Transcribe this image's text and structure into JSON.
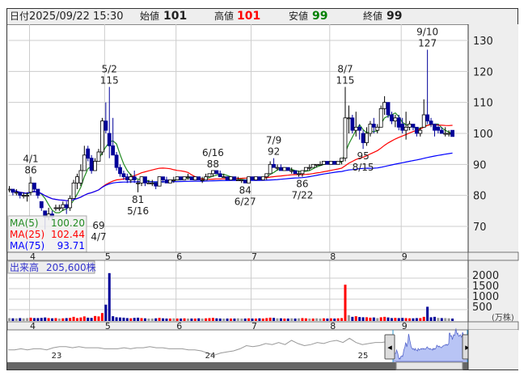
{
  "header": {
    "date_label": "日付",
    "date_value": "2025/09/22 15:30",
    "open_label": "始値",
    "open_value": "101",
    "high_label": "高値",
    "high_value": "101",
    "low_label": "安値",
    "low_value": "99",
    "close_label": "終値",
    "close_value": "99"
  },
  "colors": {
    "up_body": "#ffffff",
    "down_body": "#000099",
    "vol_up": "#ff0000",
    "vol_down": "#000099",
    "vol_flat": "#999999",
    "ma5": "#228b22",
    "ma25": "#ff0000",
    "ma75": "#0000ff",
    "high_text": "#ff0000",
    "low_text": "#008000"
  },
  "legend": [
    {
      "label": "MA(5)",
      "value": "100.20"
    },
    {
      "label": "MA(25)",
      "value": "102.44"
    },
    {
      "label": "MA(75)",
      "value": "93.71"
    }
  ],
  "volume_header": {
    "label": "出来高",
    "value": "205,600株"
  },
  "navigator": {
    "year_labels": [
      "23",
      "24",
      "25"
    ],
    "history": [
      81,
      81,
      82,
      81,
      82,
      82,
      81,
      83,
      84,
      84,
      83,
      84,
      83,
      83,
      83,
      82,
      82,
      82,
      83,
      82,
      83,
      83,
      84,
      83,
      83,
      82,
      82,
      82,
      81,
      81,
      80,
      78,
      76,
      78,
      79,
      80,
      82,
      85,
      84,
      85,
      87,
      86,
      88,
      86,
      90,
      87,
      85,
      86,
      88,
      87,
      89,
      90,
      88,
      92,
      88,
      86,
      87,
      88,
      88,
      89
    ]
  },
  "chart_data": {
    "type": "candlestick",
    "price_axis": {
      "ticks": [
        130,
        120,
        110,
        100,
        90,
        80,
        70
      ],
      "range": [
        62,
        135
      ]
    },
    "volume_axis": {
      "ticks": [
        2000,
        1500,
        1000,
        500
      ],
      "unit": "(万株)"
    },
    "month_labels": [
      "4",
      "5",
      "6",
      "7",
      "8",
      "9"
    ],
    "month_starts": [
      "04/01",
      "05/01",
      "06/02",
      "07/01",
      "08/01",
      "09/01"
    ],
    "moving_averages": [
      5,
      25,
      75
    ],
    "annotations": [
      {
        "date": "04/01",
        "value": 86,
        "kind": "high",
        "date_text": "4/1",
        "value_text": "86"
      },
      {
        "date": "05/02",
        "value": 115,
        "kind": "high",
        "date_text": "5/2",
        "value_text": "115"
      },
      {
        "date": "06/16",
        "value": 88,
        "kind": "high",
        "date_text": "6/16",
        "value_text": "88"
      },
      {
        "date": "07/09",
        "value": 92,
        "kind": "high",
        "date_text": "7/9",
        "value_text": "92"
      },
      {
        "date": "08/07",
        "value": 115,
        "kind": "high",
        "date_text": "8/7",
        "value_text": "115"
      },
      {
        "date": "09/10",
        "value": 127,
        "kind": "high",
        "date_text": "9/10",
        "value_text": "127"
      },
      {
        "date": "04/07",
        "value": 69,
        "kind": "low",
        "date_text": "4/7",
        "value_text": "69"
      },
      {
        "date": "05/16",
        "value": 81,
        "kind": "low",
        "date_text": "5/16",
        "value_text": "81"
      },
      {
        "date": "06/27",
        "value": 84,
        "kind": "low",
        "date_text": "6/27",
        "value_text": "84"
      },
      {
        "date": "07/22",
        "value": 86,
        "kind": "low",
        "date_text": "7/22",
        "value_text": "86"
      },
      {
        "date": "08/15",
        "value": 95,
        "kind": "low",
        "date_text": "8/15",
        "value_text": "95"
      }
    ],
    "candles_fields": [
      "date",
      "open",
      "high",
      "low",
      "close",
      "volume_man"
    ],
    "candles": [
      [
        "03/24",
        82,
        83,
        81,
        82,
        60
      ],
      [
        "03/25",
        82,
        82,
        80,
        81,
        50
      ],
      [
        "03/26",
        81,
        82,
        80,
        81,
        50
      ],
      [
        "03/27",
        81,
        81,
        79,
        80,
        60
      ],
      [
        "03/28",
        80,
        81,
        79,
        80,
        50
      ],
      [
        "03/31",
        80,
        81,
        78,
        80,
        60
      ],
      [
        "04/01",
        81,
        86,
        80,
        84,
        80
      ],
      [
        "04/02",
        84,
        84,
        81,
        82,
        60
      ],
      [
        "04/03",
        82,
        82,
        79,
        80,
        60
      ],
      [
        "04/04",
        78,
        78,
        75,
        76,
        70
      ],
      [
        "04/07",
        75,
        75,
        69,
        73,
        90
      ],
      [
        "04/08",
        73,
        76,
        72,
        74,
        60
      ],
      [
        "04/09",
        74,
        75,
        72,
        73,
        50
      ],
      [
        "04/10",
        76,
        77,
        75,
        76,
        60
      ],
      [
        "04/11",
        76,
        77,
        75,
        76,
        40
      ],
      [
        "04/14",
        76,
        78,
        75,
        77,
        50
      ],
      [
        "04/15",
        77,
        78,
        74,
        76,
        60
      ],
      [
        "04/16",
        76,
        80,
        75,
        79,
        70
      ],
      [
        "04/17",
        79,
        85,
        79,
        84,
        120
      ],
      [
        "04/18",
        84,
        87,
        82,
        86,
        60
      ],
      [
        "04/21",
        84,
        90,
        83,
        88,
        90
      ],
      [
        "04/22",
        88,
        96,
        88,
        93,
        140
      ],
      [
        "04/23",
        95,
        96,
        91,
        92,
        80
      ],
      [
        "04/24",
        92,
        93,
        87,
        88,
        70
      ],
      [
        "04/25",
        88,
        92,
        88,
        91,
        160
      ],
      [
        "04/28",
        91,
        95,
        91,
        94,
        140
      ],
      [
        "04/30",
        94,
        105,
        93,
        104,
        300
      ],
      [
        "05/01",
        104,
        110,
        100,
        101,
        700
      ],
      [
        "05/02",
        100,
        115,
        92,
        96,
        2200
      ],
      [
        "05/07",
        96,
        105,
        93,
        93,
        150
      ],
      [
        "05/08",
        93,
        94,
        88,
        89,
        100
      ],
      [
        "05/09",
        89,
        90,
        86,
        87,
        90
      ],
      [
        "05/12",
        87,
        88,
        85,
        86,
        80
      ],
      [
        "05/13",
        86,
        87,
        84,
        85,
        60
      ],
      [
        "05/14",
        85,
        87,
        84,
        86,
        50
      ],
      [
        "05/15",
        86,
        88,
        84,
        85,
        70
      ],
      [
        "05/16",
        84,
        85,
        81,
        84,
        80
      ],
      [
        "05/19",
        84,
        86,
        83,
        86,
        60
      ],
      [
        "05/20",
        86,
        86,
        83,
        84,
        50
      ],
      [
        "05/21",
        84,
        85,
        84,
        84,
        40
      ],
      [
        "05/22",
        84,
        85,
        83,
        84,
        40
      ],
      [
        "05/23",
        84,
        84,
        82,
        83,
        50
      ],
      [
        "05/26",
        83,
        86,
        83,
        86,
        70
      ],
      [
        "05/27",
        86,
        86,
        84,
        85,
        50
      ],
      [
        "05/28",
        85,
        86,
        84,
        84,
        40
      ],
      [
        "05/29",
        84,
        85,
        84,
        85,
        40
      ],
      [
        "05/30",
        85,
        86,
        84,
        85,
        50
      ],
      [
        "06/02",
        85,
        86,
        85,
        86,
        40
      ],
      [
        "06/03",
        86,
        86,
        85,
        85,
        40
      ],
      [
        "06/04",
        85,
        86,
        85,
        86,
        50
      ],
      [
        "06/05",
        86,
        87,
        85,
        86,
        40
      ],
      [
        "06/06",
        86,
        86,
        85,
        85,
        40
      ],
      [
        "06/09",
        85,
        86,
        85,
        86,
        40
      ],
      [
        "06/10",
        86,
        86,
        85,
        85,
        50
      ],
      [
        "06/11",
        85,
        86,
        84,
        85,
        40
      ],
      [
        "06/12",
        85,
        87,
        85,
        86,
        50
      ],
      [
        "06/13",
        86,
        87,
        86,
        87,
        60
      ],
      [
        "06/16",
        87,
        88,
        86,
        88,
        70
      ],
      [
        "06/17",
        88,
        88,
        87,
        87,
        50
      ],
      [
        "06/18",
        87,
        88,
        86,
        86,
        40
      ],
      [
        "06/19",
        86,
        87,
        86,
        86,
        40
      ],
      [
        "06/20",
        86,
        86,
        85,
        85,
        40
      ],
      [
        "06/23",
        85,
        86,
        85,
        86,
        40
      ],
      [
        "06/24",
        86,
        86,
        85,
        85,
        40
      ],
      [
        "06/25",
        85,
        86,
        85,
        85,
        50
      ],
      [
        "06/26",
        85,
        85,
        84,
        85,
        40
      ],
      [
        "06/27",
        85,
        85,
        84,
        84,
        40
      ],
      [
        "06/30",
        84,
        86,
        84,
        86,
        50
      ],
      [
        "07/01",
        86,
        86,
        85,
        85,
        40
      ],
      [
        "07/02",
        85,
        86,
        85,
        86,
        40
      ],
      [
        "07/03",
        86,
        86,
        85,
        85,
        50
      ],
      [
        "07/04",
        85,
        86,
        85,
        86,
        40
      ],
      [
        "07/07",
        86,
        87,
        85,
        87,
        60
      ],
      [
        "07/08",
        87,
        91,
        87,
        90,
        80
      ],
      [
        "07/09",
        90,
        92,
        89,
        89,
        70
      ],
      [
        "07/10",
        89,
        90,
        88,
        89,
        50
      ],
      [
        "07/11",
        89,
        90,
        88,
        88,
        50
      ],
      [
        "07/14",
        88,
        89,
        88,
        89,
        40
      ],
      [
        "07/15",
        89,
        89,
        88,
        88,
        40
      ],
      [
        "07/16",
        88,
        89,
        87,
        88,
        50
      ],
      [
        "07/17",
        88,
        88,
        87,
        87,
        40
      ],
      [
        "07/18",
        87,
        88,
        86,
        87,
        50
      ],
      [
        "07/22",
        87,
        88,
        86,
        88,
        60
      ],
      [
        "07/23",
        88,
        89,
        88,
        89,
        50
      ],
      [
        "07/24",
        89,
        90,
        88,
        89,
        40
      ],
      [
        "07/25",
        89,
        90,
        89,
        90,
        40
      ],
      [
        "07/28",
        90,
        90,
        89,
        90,
        50
      ],
      [
        "07/29",
        90,
        91,
        90,
        90,
        40
      ],
      [
        "07/30",
        90,
        91,
        90,
        91,
        50
      ],
      [
        "07/31",
        91,
        91,
        90,
        90,
        40
      ],
      [
        "08/01",
        90,
        91,
        90,
        91,
        50
      ],
      [
        "08/04",
        91,
        91,
        90,
        90,
        40
      ],
      [
        "08/05",
        90,
        91,
        90,
        91,
        50
      ],
      [
        "08/06",
        91,
        92,
        90,
        92,
        60
      ],
      [
        "08/07",
        92,
        115,
        91,
        105,
        1650
      ],
      [
        "08/08",
        105,
        109,
        100,
        105,
        200
      ],
      [
        "08/12",
        105,
        106,
        100,
        101,
        120
      ],
      [
        "08/13",
        101,
        107,
        99,
        102,
        150
      ],
      [
        "08/14",
        102,
        103,
        98,
        101,
        110
      ],
      [
        "08/15",
        100,
        101,
        95,
        97,
        100
      ],
      [
        "08/18",
        97,
        102,
        96,
        100,
        100
      ],
      [
        "08/19",
        100,
        104,
        99,
        103,
        80
      ],
      [
        "08/20",
        103,
        105,
        100,
        102,
        90
      ],
      [
        "08/21",
        101,
        103,
        100,
        102,
        60
      ],
      [
        "08/22",
        102,
        109,
        102,
        108,
        100
      ],
      [
        "08/25",
        108,
        112,
        106,
        110,
        120
      ],
      [
        "08/26",
        110,
        110,
        105,
        106,
        90
      ],
      [
        "08/27",
        106,
        107,
        103,
        104,
        60
      ],
      [
        "08/28",
        104,
        106,
        102,
        105,
        70
      ],
      [
        "08/29",
        105,
        106,
        101,
        102,
        60
      ],
      [
        "09/01",
        103,
        105,
        100,
        101,
        70
      ],
      [
        "09/02",
        101,
        107,
        98,
        102,
        60
      ],
      [
        "09/03",
        102,
        104,
        101,
        103,
        50
      ],
      [
        "09/04",
        103,
        103,
        101,
        102,
        50
      ],
      [
        "09/05",
        102,
        102,
        99,
        100,
        60
      ],
      [
        "09/08",
        100,
        102,
        99,
        101,
        60
      ],
      [
        "09/09",
        102,
        111,
        102,
        106,
        120
      ],
      [
        "09/10",
        106,
        127,
        103,
        104,
        600
      ],
      [
        "09/11",
        104,
        105,
        102,
        103,
        100
      ],
      [
        "09/12",
        103,
        103,
        99,
        101,
        120
      ],
      [
        "09/16",
        102,
        103,
        100,
        101,
        70
      ],
      [
        "09/17",
        101,
        102,
        100,
        100,
        60
      ],
      [
        "09/18",
        100,
        102,
        99,
        100,
        60
      ],
      [
        "09/19",
        100,
        101,
        99,
        100,
        50
      ],
      [
        "09/22",
        101,
        101,
        99,
        99,
        20.56
      ]
    ]
  }
}
